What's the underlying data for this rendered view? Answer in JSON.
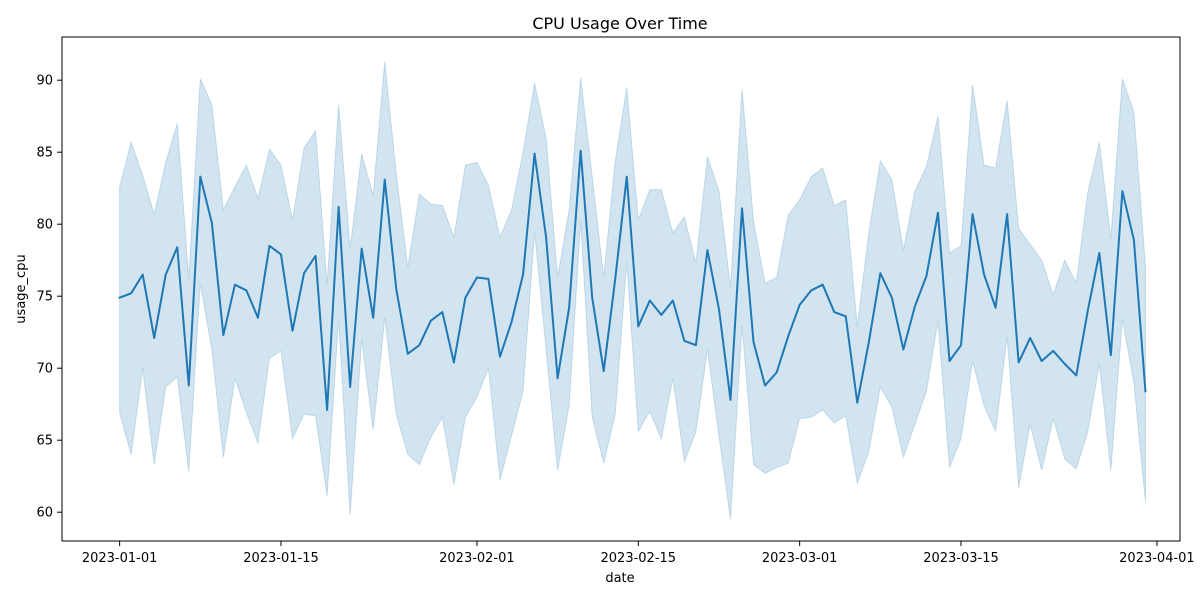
{
  "chart_data": {
    "type": "line",
    "title": "CPU Usage Over Time",
    "xlabel": "date",
    "ylabel": "usage_cpu",
    "xlim": [
      "2022-12-27",
      "2023-04-03"
    ],
    "ylim": [
      58,
      93
    ],
    "x_ticks": [
      "2023-01-01",
      "2023-01-15",
      "2023-02-01",
      "2023-02-15",
      "2023-03-01",
      "2023-03-15",
      "2023-04-01"
    ],
    "y_ticks": [
      60,
      65,
      70,
      75,
      80,
      85,
      90
    ],
    "grid": false,
    "colors": {
      "line": "#1f77b4",
      "band": "#1f77b4"
    },
    "series": [
      {
        "x": [
          "2023-01-01",
          "2023-01-02",
          "2023-01-03",
          "2023-01-04",
          "2023-01-05",
          "2023-01-06",
          "2023-01-07",
          "2023-01-08",
          "2023-01-09",
          "2023-01-10",
          "2023-01-11",
          "2023-01-12",
          "2023-01-13",
          "2023-01-14",
          "2023-01-15",
          "2023-01-16",
          "2023-01-17",
          "2023-01-18",
          "2023-01-19",
          "2023-01-20",
          "2023-01-21",
          "2023-01-22",
          "2023-01-23",
          "2023-01-24",
          "2023-01-25",
          "2023-01-26",
          "2023-01-27",
          "2023-01-28",
          "2023-01-29",
          "2023-01-30",
          "2023-01-31",
          "2023-02-01",
          "2023-02-02",
          "2023-02-03",
          "2023-02-04",
          "2023-02-05",
          "2023-02-06",
          "2023-02-07",
          "2023-02-08",
          "2023-02-09",
          "2023-02-10",
          "2023-02-11",
          "2023-02-12",
          "2023-02-13",
          "2023-02-14",
          "2023-02-15",
          "2023-02-16",
          "2023-02-17",
          "2023-02-18",
          "2023-02-19",
          "2023-02-20",
          "2023-02-21",
          "2023-02-22",
          "2023-02-23",
          "2023-02-24",
          "2023-02-25",
          "2023-02-26",
          "2023-02-27",
          "2023-02-28",
          "2023-03-01",
          "2023-03-02",
          "2023-03-03",
          "2023-03-04",
          "2023-03-05",
          "2023-03-06",
          "2023-03-07",
          "2023-03-08",
          "2023-03-09",
          "2023-03-10",
          "2023-03-11",
          "2023-03-12",
          "2023-03-13",
          "2023-03-14",
          "2023-03-15",
          "2023-03-16",
          "2023-03-17",
          "2023-03-18",
          "2023-03-19",
          "2023-03-20",
          "2023-03-21",
          "2023-03-22",
          "2023-03-23",
          "2023-03-24",
          "2023-03-25",
          "2023-03-26",
          "2023-03-27",
          "2023-03-28",
          "2023-03-29",
          "2023-03-30",
          "2023-03-31"
        ],
        "y": [
          74.9,
          75.2,
          76.5,
          72.1,
          76.5,
          78.4,
          68.8,
          83.3,
          80.1,
          72.3,
          75.8,
          75.4,
          73.5,
          78.5,
          77.9,
          72.6,
          76.6,
          77.8,
          67.1,
          81.2,
          68.7,
          78.3,
          73.5,
          83.1,
          75.5,
          71.0,
          71.6,
          73.3,
          73.9,
          70.4,
          74.9,
          76.3,
          76.2,
          70.8,
          73.2,
          76.5,
          84.9,
          79.1,
          69.3,
          74.2,
          85.1,
          74.9,
          69.8,
          76.2,
          83.3,
          72.9,
          74.7,
          73.7,
          74.7,
          71.9,
          71.6,
          78.2,
          74.1,
          67.8,
          81.1,
          71.8,
          68.8,
          69.7,
          72.2,
          74.4,
          75.4,
          75.8,
          73.9,
          73.6,
          67.6,
          71.8,
          76.6,
          74.9,
          71.3,
          74.3,
          76.4,
          80.8,
          70.5,
          71.6,
          80.7,
          76.5,
          74.2,
          80.7,
          70.4,
          72.1,
          70.5,
          71.2,
          70.3,
          69.5,
          74.0,
          78.0,
          70.9,
          82.3,
          78.9,
          68.4
        ],
        "lower": [
          66.9,
          64.0,
          70.0,
          63.3,
          68.7,
          69.4,
          62.8,
          75.9,
          71.3,
          63.8,
          69.3,
          66.9,
          64.8,
          70.7,
          71.2,
          65.1,
          66.8,
          66.7,
          61.1,
          73.4,
          59.8,
          72.0,
          65.7,
          73.5,
          66.8,
          64.0,
          63.3,
          65.2,
          66.6,
          61.9,
          66.6,
          68.0,
          70.0,
          62.2,
          65.3,
          68.4,
          79.5,
          71.3,
          62.9,
          67.4,
          80.2,
          66.6,
          63.4,
          66.8,
          77.4,
          65.6,
          67.0,
          65.1,
          69.3,
          63.5,
          65.6,
          71.3,
          65.3,
          59.5,
          73.0,
          63.3,
          62.7,
          63.1,
          63.4,
          66.5,
          66.6,
          67.1,
          66.2,
          66.7,
          62.0,
          64.2,
          68.7,
          67.3,
          63.8,
          66.1,
          68.4,
          73.3,
          63.1,
          65.1,
          70.5,
          67.4,
          65.6,
          72.2,
          61.7,
          66.1,
          62.9,
          66.5,
          63.7,
          63.0,
          65.6,
          70.3,
          62.9,
          73.4,
          69.0,
          60.7
        ],
        "upper": [
          82.6,
          85.7,
          83.4,
          80.7,
          84.3,
          87.0,
          76.2,
          90.1,
          88.3,
          81.0,
          82.6,
          84.1,
          81.8,
          85.2,
          84.1,
          80.3,
          85.3,
          86.5,
          75.8,
          88.3,
          78.3,
          84.9,
          82.0,
          91.3,
          83.5,
          77.0,
          82.1,
          81.4,
          81.3,
          79.1,
          84.1,
          84.3,
          82.7,
          79.1,
          81.0,
          85.0,
          89.8,
          86.0,
          76.3,
          81.0,
          90.2,
          83.3,
          76.3,
          84.4,
          89.5,
          80.3,
          82.4,
          82.4,
          79.4,
          80.5,
          77.3,
          84.7,
          82.3,
          75.6,
          89.4,
          80.2,
          75.9,
          76.3,
          80.6,
          81.7,
          83.3,
          83.9,
          81.3,
          81.7,
          72.9,
          79.4,
          84.4,
          83.1,
          78.2,
          82.3,
          84.0,
          87.5,
          78.0,
          78.5,
          89.7,
          84.1,
          83.9,
          88.6,
          79.7,
          78.6,
          77.5,
          75.1,
          77.5,
          75.9,
          82.2,
          85.7,
          79.0,
          90.1,
          87.8,
          77.1
        ]
      }
    ]
  }
}
